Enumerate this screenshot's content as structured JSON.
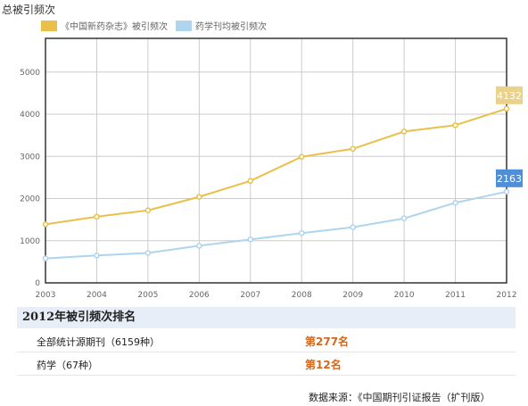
{
  "chart_title": "总被引频次",
  "colors": {
    "journal": "#e8c04a",
    "average": "#aed4ee",
    "journal_badge": "#ead28a",
    "average_badge": "#4e8fd8",
    "grid": "#cccccc",
    "axis": "#333333"
  },
  "chart_data": {
    "type": "line",
    "x": [
      "2003",
      "2004",
      "2005",
      "2006",
      "2007",
      "2008",
      "2009",
      "2010",
      "2011",
      "2012"
    ],
    "series": [
      {
        "name": "《中国新药杂志》被引频次",
        "values": [
          1390,
          1570,
          1720,
          2040,
          2420,
          2990,
          3180,
          3590,
          3740,
          4132
        ]
      },
      {
        "name": "药学刊均被引频次",
        "values": [
          580,
          650,
          710,
          880,
          1030,
          1180,
          1320,
          1530,
          1900,
          2163
        ]
      }
    ],
    "yticks": [
      "0",
      "1000",
      "2000",
      "3000",
      "4000",
      "5000"
    ],
    "ylim": [
      0,
      5800
    ],
    "end_labels": [
      "4132",
      "2163"
    ],
    "grid": true,
    "legend_position": "top-left"
  },
  "ranking": {
    "header": "2012年被引频次排名",
    "rows": [
      {
        "label": "全部统计源期刊（6159种）",
        "value": "第277名"
      },
      {
        "label": "药学（67种）",
        "value": "第12名"
      }
    ]
  },
  "source_note": "数据来源：《中国期刊引证报告（扩刊版）"
}
